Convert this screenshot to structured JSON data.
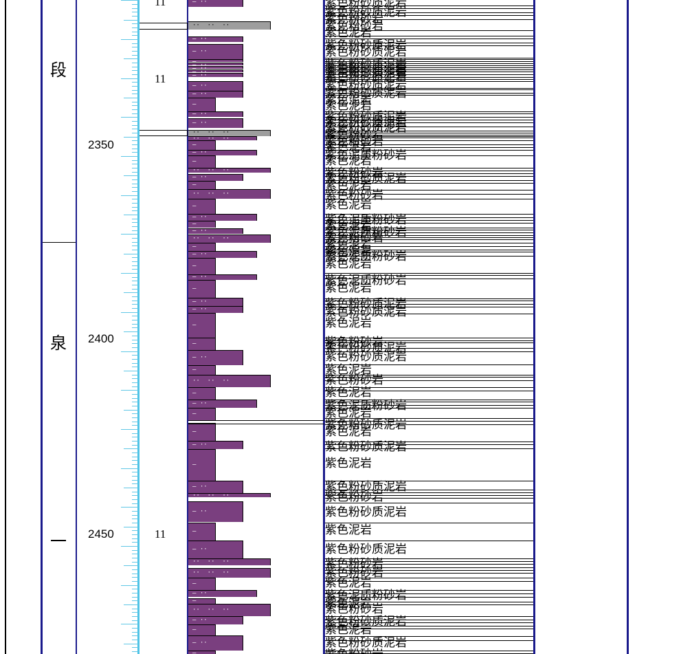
{
  "colors": {
    "frame_black": "#000000",
    "column_border": "#1a1a8c",
    "depth_axis": "#4ec3e6",
    "mudstone_fill": "#7a3f7f",
    "sandstone_fill": "#9e9e9e"
  },
  "strata": {
    "chars": [
      "段",
      "泉",
      "一"
    ]
  },
  "depth_scale": {
    "labels": [
      "2350",
      "2400",
      "2450"
    ]
  },
  "layer_numbers": [
    "11",
    "11",
    "11"
  ],
  "lithology": {
    "names": [
      "紫色粉砂质泥岩",
      "紫色泥岩",
      "紫色粉砂岩",
      "紫色泥质粉砂岩"
    ]
  },
  "legend_symbols": {
    "mud_dash": "—",
    "silt_dots": "··"
  }
}
